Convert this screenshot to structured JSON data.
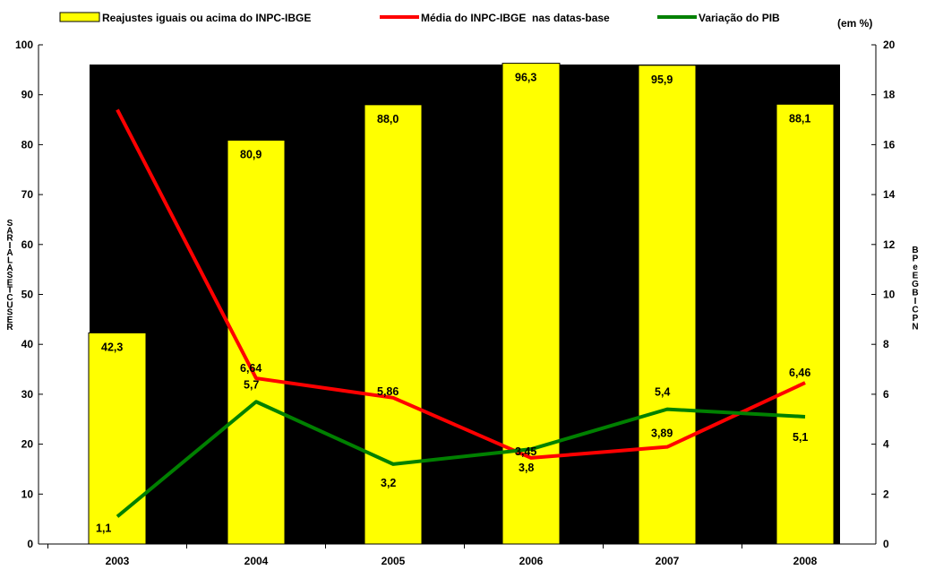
{
  "chart_data": {
    "type": "bar",
    "categories": [
      "2003",
      "2004",
      "2005",
      "2006",
      "2007",
      "2008"
    ],
    "units_note": "(em %)",
    "series": [
      {
        "name": "Reajustes iguais ou acima do INPC-IBGE",
        "kind": "bar",
        "axis": "left",
        "color": "#ffff00",
        "values": [
          42.3,
          80.9,
          88.0,
          96.3,
          95.9,
          88.1
        ],
        "labels": [
          "42,3",
          "80,9",
          "88,0",
          "96,3",
          "95,9",
          "88,1"
        ]
      },
      {
        "name": "Média do INPC-IBGE  nas datas-base",
        "kind": "line",
        "axis": "right",
        "color": "#ff0000",
        "values": [
          17.4,
          6.64,
          5.86,
          3.45,
          3.89,
          6.46
        ],
        "labels": [
          "",
          "6,64",
          "5,86",
          "3,45",
          "3,89",
          "6,46"
        ]
      },
      {
        "name": "Variação do PIB",
        "kind": "line",
        "axis": "right",
        "color": "#008000",
        "values": [
          1.1,
          5.7,
          3.2,
          3.8,
          5.4,
          5.1
        ],
        "labels": [
          "1,1",
          "5,7",
          "3,2",
          "3,8",
          "5,4",
          "5,1"
        ]
      }
    ],
    "left_axis": {
      "ylim": [
        0,
        100
      ],
      "ticks": [
        "0",
        "10",
        "20",
        "30",
        "40",
        "50",
        "60",
        "70",
        "80",
        "90",
        "100"
      ],
      "label_chars": [
        "S",
        "A",
        "R",
        "I",
        "A",
        "L",
        "A",
        "S",
        "E",
        "T",
        "C",
        "U",
        "S",
        "E",
        "R"
      ]
    },
    "right_axis": {
      "ylim": [
        0,
        20
      ],
      "ticks": [
        "0",
        "2",
        "4",
        "6",
        "8",
        "10",
        "12",
        "14",
        "16",
        "18",
        "20"
      ],
      "label_chars": [
        "B",
        "P",
        "e",
        "E",
        "G",
        "B",
        "I",
        "C",
        "P",
        "N"
      ]
    },
    "plot_background": "#000000",
    "legend_position": "top"
  }
}
